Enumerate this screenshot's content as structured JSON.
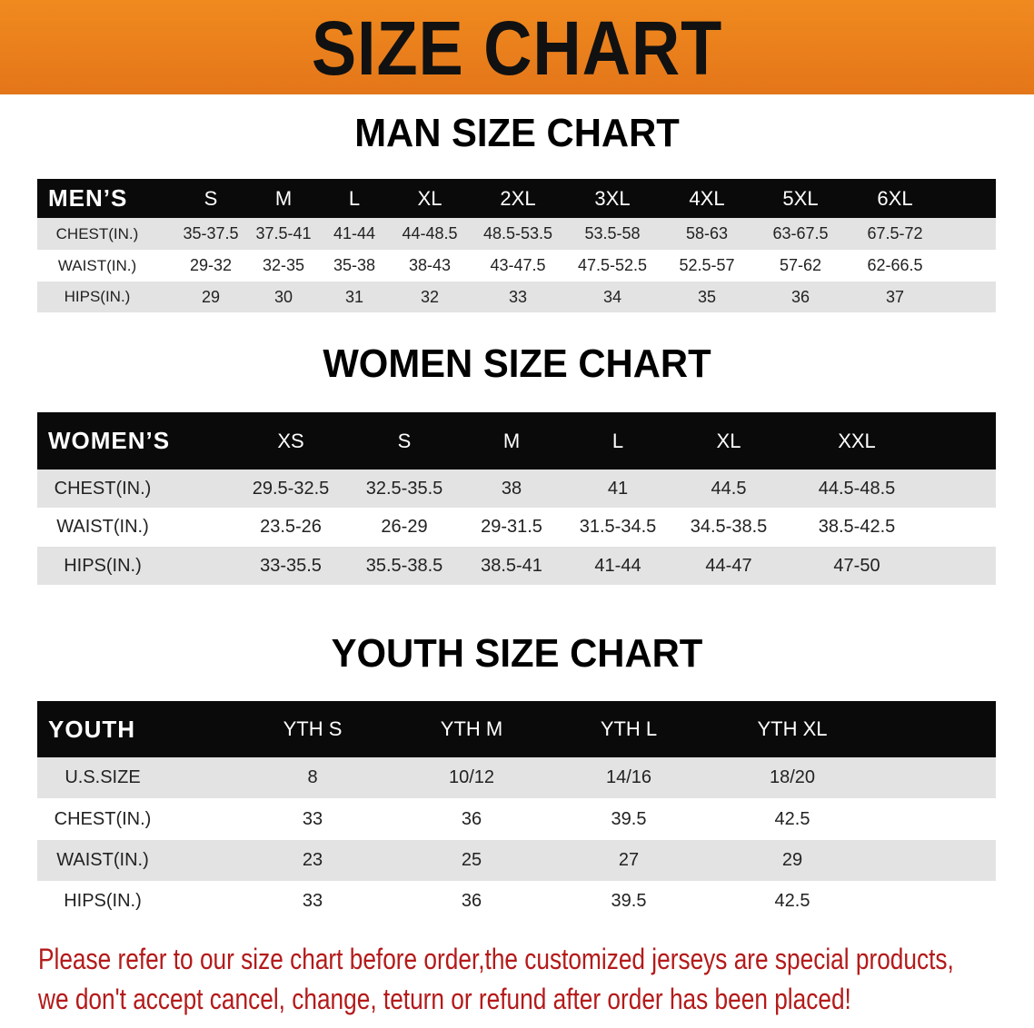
{
  "banner": {
    "title": "SIZE CHART",
    "color": "#ec801c"
  },
  "men": {
    "title": "MAN SIZE CHART",
    "header": [
      "MEN’S",
      "S",
      "M",
      "L",
      "XL",
      "2XL",
      "3XL",
      "4XL",
      "5XL",
      "6XL"
    ],
    "rows": [
      [
        "CHEST(IN.)",
        "35-37.5",
        "37.5-41",
        "41-44",
        "44-48.5",
        "48.5-53.5",
        "53.5-58",
        "58-63",
        "63-67.5",
        "67.5-72"
      ],
      [
        "WAIST(IN.)",
        "29-32",
        "32-35",
        "35-38",
        "38-43",
        "43-47.5",
        "47.5-52.5",
        "52.5-57",
        "57-62",
        "62-66.5"
      ],
      [
        "HIPS(IN.)",
        "29",
        "30",
        "31",
        "32",
        "33",
        "34",
        "35",
        "36",
        "37"
      ]
    ]
  },
  "women": {
    "title": "WOMEN SIZE CHART",
    "header": [
      "WOMEN’S",
      "XS",
      "S",
      "M",
      "L",
      "XL",
      "XXL"
    ],
    "rows": [
      [
        "CHEST(IN.)",
        "29.5-32.5",
        "32.5-35.5",
        "38",
        "41",
        "44.5",
        "44.5-48.5"
      ],
      [
        "WAIST(IN.)",
        "23.5-26",
        "26-29",
        "29-31.5",
        "31.5-34.5",
        "34.5-38.5",
        "38.5-42.5"
      ],
      [
        "HIPS(IN.)",
        "33-35.5",
        "35.5-38.5",
        "38.5-41",
        "41-44",
        "44-47",
        "47-50"
      ]
    ]
  },
  "youth": {
    "title": "YOUTH SIZE CHART",
    "header": [
      "YOUTH",
      "YTH S",
      "YTH M",
      "YTH L",
      "YTH XL"
    ],
    "rows": [
      [
        "U.S.SIZE",
        "8",
        "10/12",
        "14/16",
        "18/20"
      ],
      [
        "CHEST(IN.)",
        "33",
        "36",
        "39.5",
        "42.5"
      ],
      [
        "WAIST(IN.)",
        "23",
        "25",
        "27",
        "29"
      ],
      [
        "HIPS(IN.)",
        "33",
        "36",
        "39.5",
        "42.5"
      ]
    ]
  },
  "footer": {
    "line1": "Please refer to our size chart before order,the customized jerseys are special products,",
    "line2": "we don't accept cancel, change, teturn or refund after order has been placed!",
    "color": "#b41a1a"
  }
}
